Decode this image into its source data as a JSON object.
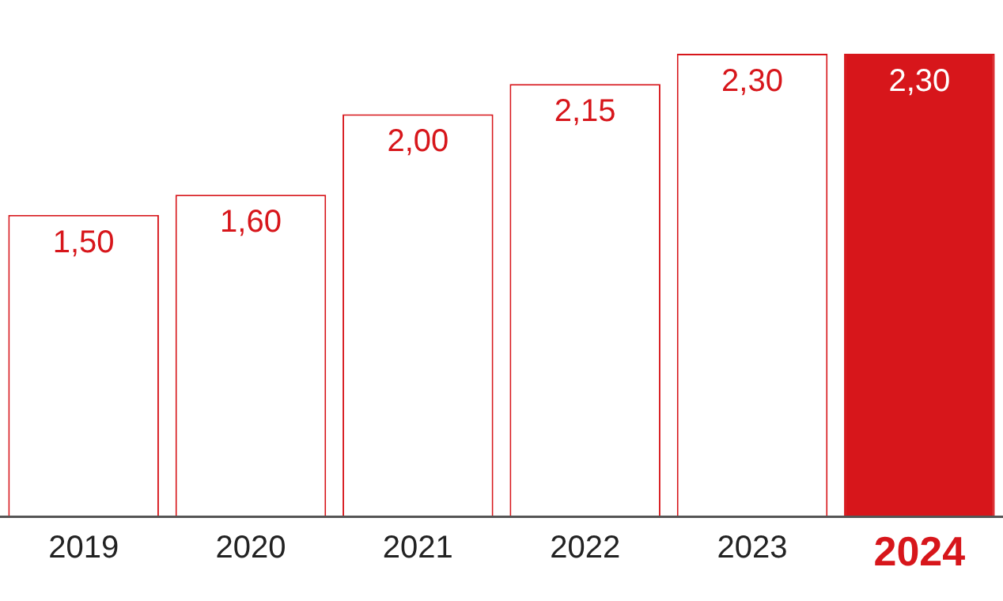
{
  "chart_data": {
    "type": "bar",
    "categories": [
      "2019",
      "2020",
      "2021",
      "2022",
      "2023",
      "2024"
    ],
    "values": [
      1.5,
      1.6,
      2.0,
      2.15,
      2.3,
      2.3
    ],
    "color": "#d7161b",
    "colors": [
      "#ffffff",
      "#ffffff",
      "#ffffff",
      "#ffffff",
      "#ffffff",
      "#d7161b"
    ],
    "value_labels": [
      "1,50",
      "1,60",
      "2,00",
      "2,15",
      "2,30",
      "2,30"
    ],
    "grid": false,
    "legend": false
  }
}
